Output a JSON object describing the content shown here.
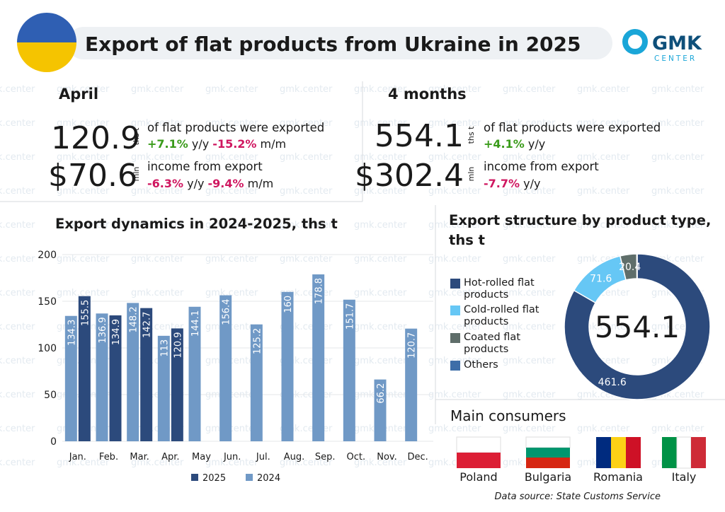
{
  "header": {
    "title": "Export of flat products from Ukraine in 2025",
    "logo": "GMK",
    "logo_sub": "CENTER"
  },
  "watermark": "gmk.center",
  "stats": [
    {
      "period": "April",
      "volume": {
        "value": "120.9",
        "unit": "ths t",
        "text": "of flat products were exported",
        "changes": [
          {
            "value": "+7.1%",
            "unit": "y/y"
          },
          {
            "value": "-15.2%",
            "unit": "m/m"
          }
        ]
      },
      "income": {
        "value": "$70.6",
        "unit": "mln",
        "text": "income from export",
        "changes": [
          {
            "value": "-6.3%",
            "unit": "y/y"
          },
          {
            "value": "-9.4%",
            "unit": "m/m"
          }
        ]
      }
    },
    {
      "period": "4 months",
      "volume": {
        "value": "554.1",
        "unit": "ths t",
        "text": "of flat products were exported",
        "changes": [
          {
            "value": "+4.1%",
            "unit": "y/y"
          }
        ]
      },
      "income": {
        "value": "$302.4",
        "unit": "mln",
        "text": "income from export",
        "changes": [
          {
            "value": "-7.7%",
            "unit": "y/y"
          }
        ]
      }
    }
  ],
  "chart_data": [
    {
      "type": "bar",
      "title": "Export dynamics in 2024-2025, ths t",
      "categories": [
        "Jan.",
        "Feb.",
        "Mar.",
        "Apr.",
        "May",
        "Jun.",
        "Jul.",
        "Aug.",
        "Sep.",
        "Oct.",
        "Nov.",
        "Dec."
      ],
      "series": [
        {
          "name": "2025",
          "color": "#2c4a7c",
          "values": [
            155.5,
            134.9,
            142.7,
            120.9,
            null,
            null,
            null,
            null,
            null,
            null,
            null,
            null
          ]
        },
        {
          "name": "2024",
          "color": "#7099c6",
          "values": [
            134.3,
            136.9,
            148.2,
            113,
            144.1,
            156.4,
            125.2,
            160,
            178.8,
            151.7,
            66.2,
            120.7
          ]
        }
      ],
      "ylim": [
        0,
        200
      ],
      "yticks": [
        0,
        50,
        100,
        150,
        200
      ],
      "grid": true
    },
    {
      "type": "pie",
      "title": "Export structure by product type, ths t",
      "categories": [
        "Hot-rolled flat products",
        "Cold-rolled flat products",
        "Coated flat products",
        "Others"
      ],
      "values": [
        461.6,
        71.6,
        20.4,
        0.5
      ],
      "value_labels": [
        "461.6",
        "71.6",
        "20.4",
        null
      ],
      "colors": [
        "#2c4a7c",
        "#66c7f5",
        "#5f6e6a",
        "#3e6ea8"
      ],
      "center_label": "554.1"
    }
  ],
  "consumers": {
    "title": "Main consumers",
    "countries": [
      "Poland",
      "Bulgaria",
      "Romania",
      "Italy"
    ]
  },
  "source": "Data source: State Customs Service"
}
